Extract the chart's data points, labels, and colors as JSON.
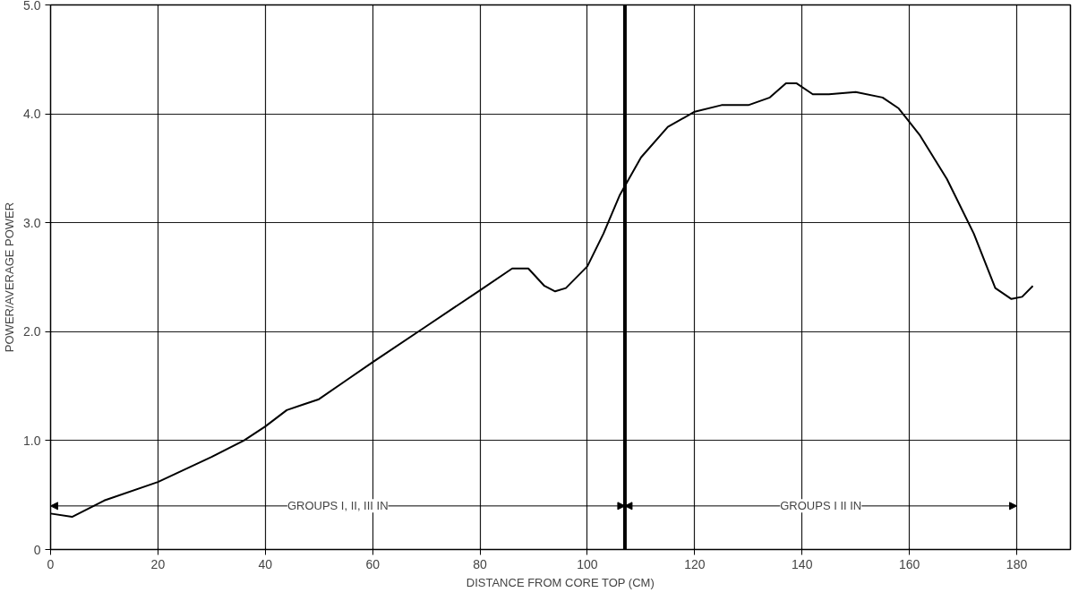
{
  "chart_data": {
    "type": "line",
    "xlabel": "DISTANCE FROM CORE TOP (CM)",
    "ylabel": "POWER/AVERAGE POWER",
    "x": [
      0,
      4,
      10,
      20,
      30,
      36,
      40,
      44,
      47,
      50,
      55,
      60,
      70,
      80,
      86,
      89,
      92,
      94,
      96,
      100,
      103,
      106,
      110,
      115,
      120,
      125,
      130,
      134,
      137,
      139,
      142,
      145,
      150,
      155,
      158,
      162,
      167,
      172,
      176,
      179,
      181,
      183
    ],
    "series": [
      {
        "color": "#000000",
        "values": [
          0.33,
          0.3,
          0.45,
          0.62,
          0.85,
          1.0,
          1.13,
          1.28,
          1.33,
          1.38,
          1.55,
          1.72,
          2.05,
          2.38,
          2.58,
          2.58,
          2.42,
          2.37,
          2.4,
          2.6,
          2.9,
          3.25,
          3.6,
          3.88,
          4.02,
          4.08,
          4.08,
          4.15,
          4.28,
          4.28,
          4.18,
          4.18,
          4.2,
          4.15,
          4.05,
          3.8,
          3.4,
          2.9,
          2.4,
          2.3,
          2.32,
          2.42
        ]
      }
    ],
    "xlim": [
      0,
      190
    ],
    "xticks": [
      0,
      20,
      40,
      60,
      80,
      100,
      120,
      140,
      160,
      180
    ],
    "ylim": [
      0,
      5
    ],
    "yticks": [
      {
        "value": 0,
        "label": "0"
      },
      {
        "value": 1,
        "label": "1.0"
      },
      {
        "value": 2,
        "label": "2.0"
      },
      {
        "value": 3,
        "label": "3.0"
      },
      {
        "value": 4,
        "label": "4.0"
      },
      {
        "value": 5,
        "label": "5.0"
      }
    ],
    "ref_lines": [
      {
        "axis": "x",
        "value": 107,
        "label": null,
        "color": "#000000"
      }
    ],
    "annotations": [
      {
        "text": "GROUPS I, II, III IN",
        "x": 107,
        "y": 0.4
      },
      {
        "text": "GROUPS I II IN",
        "x": 107,
        "y": 0.4
      }
    ],
    "grid": true,
    "marker": "none",
    "line_style": "solid"
  }
}
